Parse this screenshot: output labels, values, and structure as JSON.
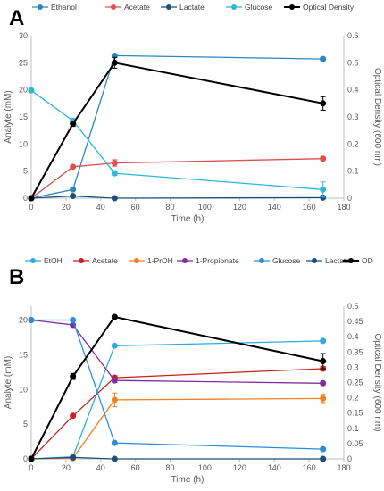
{
  "chart_data": [
    {
      "panel_label": "A",
      "type": "line",
      "xlabel": "Time (h)",
      "ylabel": "Analyte (mM)",
      "y2label": "Optical Density (600 nm)",
      "xlim": [
        0,
        180
      ],
      "xticks": [
        0,
        20,
        40,
        60,
        80,
        100,
        120,
        140,
        160,
        180
      ],
      "ylim": [
        0,
        30
      ],
      "yticks": [
        0,
        5,
        10,
        15,
        20,
        25,
        30
      ],
      "y2lim": [
        0,
        0.6
      ],
      "y2ticks": [
        0,
        0.1,
        0.2,
        0.3,
        0.4,
        0.5,
        0.6
      ],
      "legend_position": "top",
      "series": [
        {
          "name": "Ethanol",
          "color": "#2e86c1",
          "axis": "left",
          "x": [
            0,
            24,
            48,
            168
          ],
          "y": [
            0,
            1.6,
            26.3,
            25.7
          ],
          "err": [
            0,
            0.2,
            0.3,
            0.3
          ]
        },
        {
          "name": "Acetate",
          "color": "#e05050",
          "axis": "left",
          "x": [
            0,
            24,
            48,
            168
          ],
          "y": [
            0,
            5.8,
            6.5,
            7.3
          ],
          "err": [
            0,
            0.2,
            0.6,
            0.3
          ]
        },
        {
          "name": "Lactate",
          "color": "#1f4e79",
          "axis": "left",
          "x": [
            0,
            24,
            48,
            168
          ],
          "y": [
            0,
            0.4,
            0.0,
            0.1
          ],
          "err": [
            0,
            0.1,
            0.1,
            0.1
          ]
        },
        {
          "name": "Glucose",
          "color": "#2eb8d8",
          "axis": "left",
          "x": [
            0,
            24,
            48,
            168
          ],
          "y": [
            19.9,
            14.3,
            4.6,
            1.6
          ],
          "err": [
            0,
            0.3,
            0.4,
            1.4
          ]
        },
        {
          "name": "Optical Density",
          "color": "#000000",
          "axis": "right",
          "x": [
            0,
            24,
            48,
            168
          ],
          "y": [
            0,
            0.275,
            0.5,
            0.35
          ],
          "err": [
            0,
            0.01,
            0.02,
            0.025
          ]
        }
      ]
    },
    {
      "panel_label": "B",
      "type": "line",
      "xlabel": "Time (h)",
      "ylabel": "Analyte (mM)",
      "y2label": "Optical Density (600 nm)",
      "xlim": [
        0,
        180
      ],
      "xticks": [
        0,
        20,
        40,
        60,
        80,
        100,
        120,
        140,
        160,
        180
      ],
      "ylim": [
        0,
        22
      ],
      "yticks": [
        0,
        5,
        10,
        15,
        20
      ],
      "y2lim": [
        0,
        0.5
      ],
      "y2ticks": [
        0,
        0.05,
        0.1,
        0.15,
        0.2,
        0.25,
        0.3,
        0.35,
        0.4,
        0.45,
        0.5
      ],
      "legend_position": "top",
      "series": [
        {
          "name": "EtOH",
          "color": "#2eaee0",
          "axis": "left",
          "x": [
            0,
            24,
            48,
            168
          ],
          "y": [
            0,
            0.3,
            16.3,
            17.0
          ],
          "err": [
            0,
            0.1,
            0.2,
            0.2
          ]
        },
        {
          "name": "Acetate",
          "color": "#cc1f1f",
          "axis": "left",
          "x": [
            0,
            24,
            48,
            168
          ],
          "y": [
            0,
            6.2,
            11.7,
            13.0
          ],
          "err": [
            0,
            0.2,
            0.3,
            0.3
          ]
        },
        {
          "name": "1-PrOH",
          "color": "#f08020",
          "axis": "left",
          "x": [
            0,
            24,
            48,
            168
          ],
          "y": [
            0,
            0.1,
            8.5,
            8.7
          ],
          "err": [
            0,
            0.1,
            1.0,
            0.6
          ]
        },
        {
          "name": "1-Propionate",
          "color": "#7b2fa0",
          "axis": "left",
          "x": [
            0,
            24,
            48,
            168
          ],
          "y": [
            20.0,
            19.3,
            11.3,
            10.9
          ],
          "err": [
            0,
            0.2,
            0.3,
            0.2
          ]
        },
        {
          "name": "Glucose",
          "color": "#2a8fd8",
          "axis": "left",
          "x": [
            0,
            24,
            48,
            168
          ],
          "y": [
            20.0,
            20.0,
            2.3,
            1.4
          ],
          "err": [
            0,
            0.1,
            0.1,
            0.2
          ]
        },
        {
          "name": "Lactate",
          "color": "#1f4e79",
          "axis": "left",
          "x": [
            0,
            24,
            48,
            168
          ],
          "y": [
            0,
            0.2,
            0.0,
            0.0
          ],
          "err": [
            0,
            0.1,
            0.1,
            0.1
          ]
        },
        {
          "name": "OD",
          "color": "#000000",
          "axis": "right",
          "x": [
            0,
            24,
            48,
            168
          ],
          "y": [
            0,
            0.27,
            0.465,
            0.32
          ],
          "err": [
            0,
            0.01,
            0.005,
            0.025
          ]
        }
      ]
    }
  ]
}
